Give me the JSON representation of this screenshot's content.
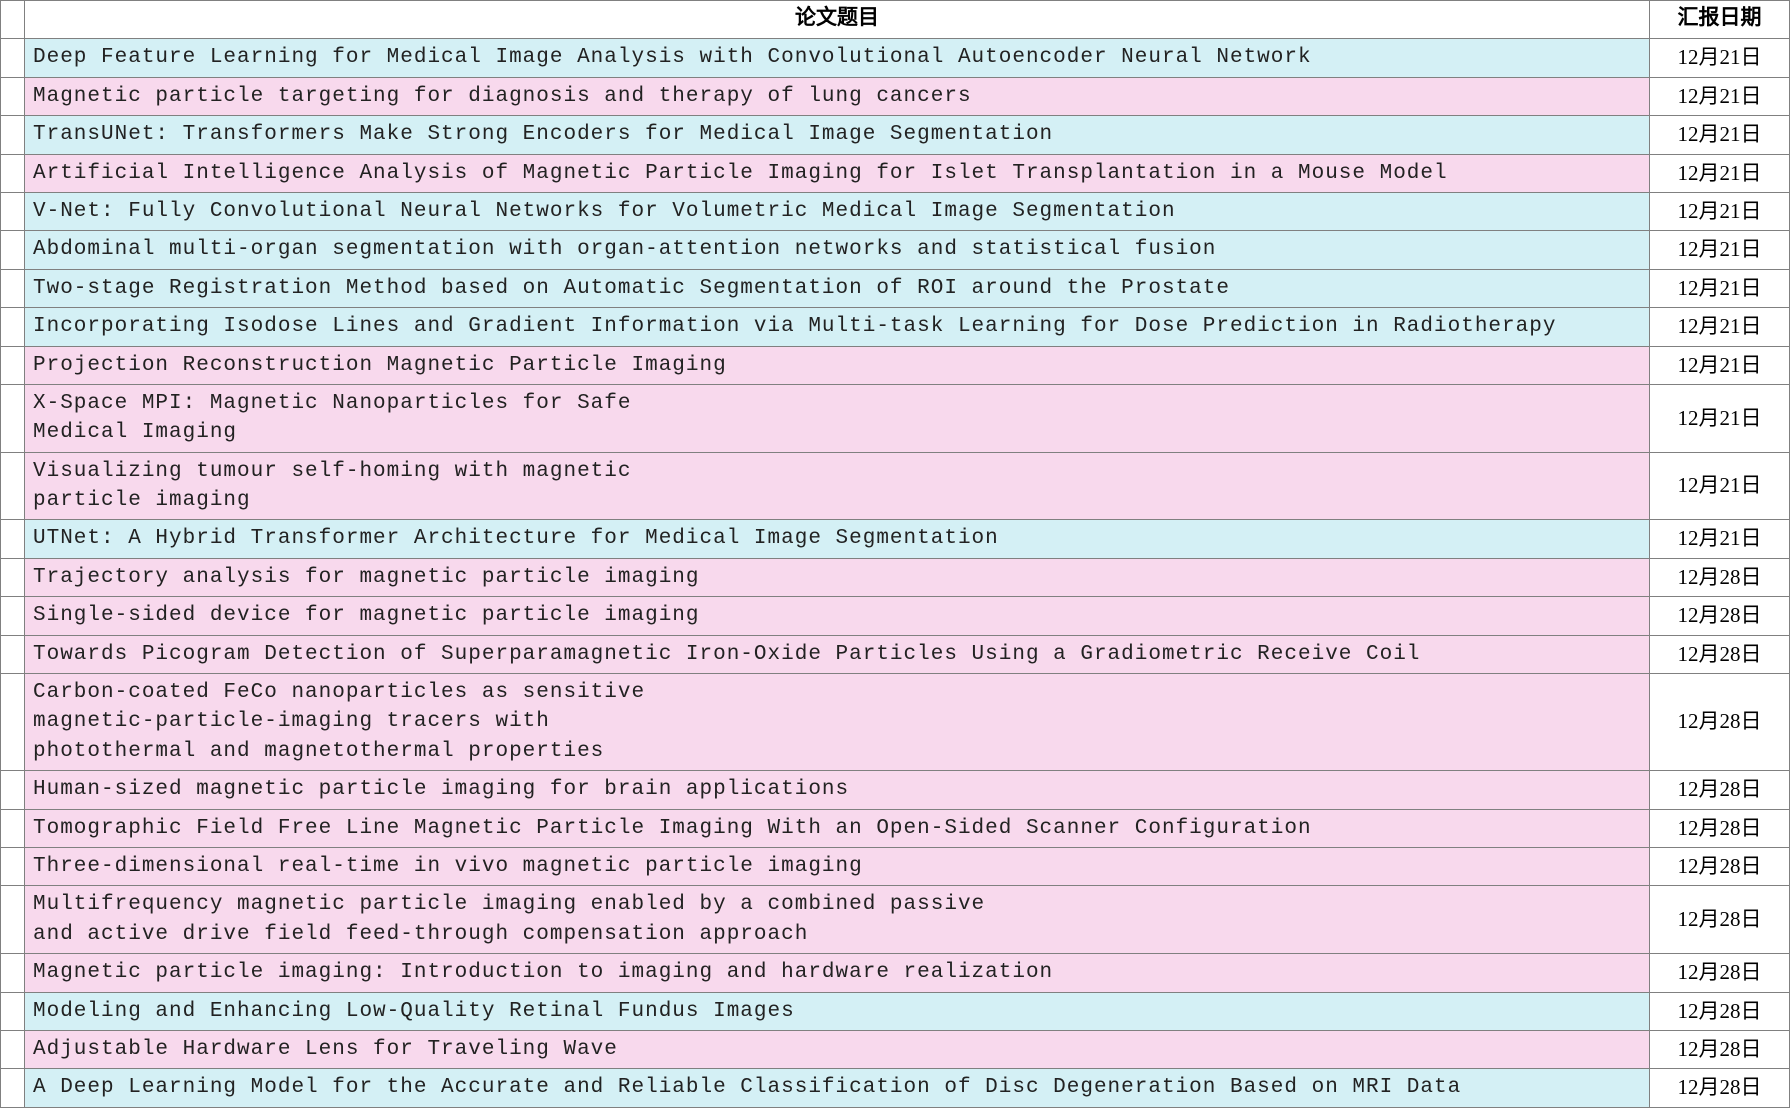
{
  "table": {
    "headers": {
      "title": "论文题目",
      "date": "汇报日期"
    },
    "colors": {
      "blue": "#d4f0f5",
      "pink": "#f8d9ed",
      "white": "#ffffff",
      "border": "#808080"
    },
    "rows": [
      {
        "title": "Deep Feature Learning for Medical Image Analysis with Convolutional Autoencoder Neural Network",
        "date": "12月21日",
        "color": "blue"
      },
      {
        "title": "Magnetic particle targeting for diagnosis and therapy of lung cancers",
        "date": "12月21日",
        "color": "pink"
      },
      {
        "title": "TransUNet: Transformers Make Strong Encoders for Medical Image Segmentation",
        "date": "12月21日",
        "color": "blue"
      },
      {
        "title": "Artificial Intelligence Analysis of Magnetic Particle Imaging for Islet Transplantation in a Mouse Model",
        "date": "12月21日",
        "color": "pink"
      },
      {
        "title": "V-Net: Fully Convolutional Neural Networks for Volumetric Medical Image Segmentation",
        "date": "12月21日",
        "color": "blue"
      },
      {
        "title": "Abdominal multi-organ segmentation with organ-attention networks and statistical fusion",
        "date": "12月21日",
        "color": "blue"
      },
      {
        "title": "Two-stage Registration Method based on Automatic Segmentation of ROI around the Prostate",
        "date": "12月21日",
        "color": "blue"
      },
      {
        "title": "Incorporating Isodose Lines and Gradient Information via Multi-task Learning for Dose Prediction in Radiotherapy",
        "date": "12月21日",
        "color": "blue"
      },
      {
        "title": "Projection Reconstruction Magnetic Particle Imaging",
        "date": "12月21日",
        "color": "pink"
      },
      {
        "title": "X-Space MPI: Magnetic Nanoparticles for Safe\nMedical Imaging",
        "date": "12月21日",
        "color": "pink"
      },
      {
        "title": "Visualizing tumour self-homing with magnetic\nparticle imaging",
        "date": "12月21日",
        "color": "pink"
      },
      {
        "title": "UTNet: A Hybrid Transformer Architecture for Medical Image Segmentation",
        "date": "12月21日",
        "color": "blue"
      },
      {
        "title": "Trajectory analysis for magnetic particle imaging",
        "date": "12月28日",
        "color": "pink"
      },
      {
        "title": "Single-sided device for magnetic particle imaging",
        "date": "12月28日",
        "color": "pink"
      },
      {
        "title": "Towards Picogram Detection of Superparamagnetic Iron-Oxide Particles Using a Gradiometric Receive Coil",
        "date": "12月28日",
        "color": "pink"
      },
      {
        "title": "Carbon-coated FeCo nanoparticles as sensitive\nmagnetic-particle-imaging tracers with\nphotothermal and magnetothermal properties",
        "date": "12月28日",
        "color": "pink"
      },
      {
        "title": "Human-sized magnetic particle imaging for brain applications",
        "date": "12月28日",
        "color": "pink"
      },
      {
        "title": "Tomographic Field Free Line Magnetic Particle Imaging With an Open-Sided Scanner Configuration",
        "date": "12月28日",
        "color": "pink"
      },
      {
        "title": "Three-dimensional real-time in vivo magnetic particle imaging",
        "date": "12月28日",
        "color": "pink"
      },
      {
        "title": "Multifrequency magnetic particle imaging enabled by a combined passive\nand active drive field feed-through compensation approach",
        "date": "12月28日",
        "color": "pink"
      },
      {
        "title": "Magnetic particle imaging: Introduction to imaging and hardware realization",
        "date": "12月28日",
        "color": "pink"
      },
      {
        "title": "Modeling and Enhancing Low-Quality Retinal Fundus Images",
        "date": "12月28日",
        "color": "blue"
      },
      {
        "title": "Adjustable Hardware Lens for Traveling Wave",
        "date": "12月28日",
        "color": "pink"
      },
      {
        "title": "A Deep Learning Model for the Accurate and Reliable Classification of Disc Degeneration Based on MRI Data",
        "date": "12月28日",
        "color": "blue"
      }
    ]
  }
}
